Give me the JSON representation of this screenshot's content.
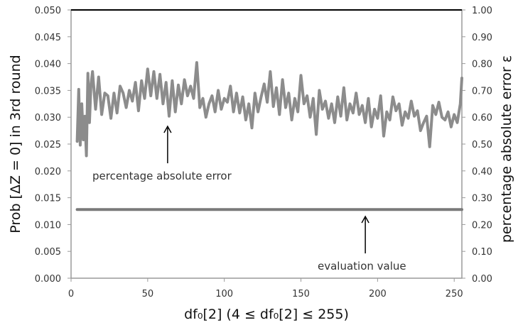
{
  "chart_data": {
    "type": "line",
    "title": "",
    "xlabel": "df₀[2]  (4 ≤ df₀[2] ≤ 255)",
    "ylabel_left": "Prob [ΔZ = 0] in 3rd round",
    "ylabel_right": "percentage absolute error ε",
    "xlim": [
      0,
      255
    ],
    "ylim_left": [
      0.0,
      0.05
    ],
    "ylim_right": [
      0.0,
      1.0
    ],
    "grid": false,
    "x_ticks": [
      "0",
      "50",
      "100",
      "150",
      "200",
      "250"
    ],
    "y_left_ticks": [
      "0.000",
      "0.005",
      "0.010",
      "0.015",
      "0.020",
      "0.025",
      "0.030",
      "0.035",
      "0.040",
      "0.045",
      "0.050"
    ],
    "y_right_ticks": [
      "0.00",
      "0.10",
      "0.20",
      "0.30",
      "0.40",
      "0.50",
      "0.60",
      "0.70",
      "0.80",
      "0.90",
      "1.00"
    ],
    "series": [
      {
        "name": "percentage absolute error",
        "axis": "left",
        "color": "#8c8c8c",
        "x": [
          4,
          5,
          6,
          7,
          8,
          9,
          10,
          11,
          12,
          13,
          14,
          16,
          18,
          20,
          22,
          24,
          26,
          28,
          30,
          32,
          34,
          36,
          38,
          40,
          42,
          44,
          46,
          48,
          50,
          52,
          54,
          56,
          58,
          60,
          62,
          64,
          66,
          68,
          70,
          72,
          74,
          76,
          78,
          80,
          82,
          84,
          86,
          88,
          90,
          92,
          94,
          96,
          98,
          100,
          102,
          104,
          106,
          108,
          110,
          112,
          114,
          116,
          118,
          120,
          122,
          124,
          126,
          128,
          130,
          132,
          134,
          136,
          138,
          140,
          142,
          144,
          146,
          148,
          150,
          152,
          154,
          156,
          158,
          160,
          162,
          164,
          166,
          168,
          170,
          172,
          174,
          176,
          178,
          180,
          182,
          184,
          186,
          188,
          190,
          192,
          194,
          196,
          198,
          200,
          202,
          204,
          206,
          208,
          210,
          212,
          214,
          216,
          218,
          220,
          222,
          224,
          226,
          228,
          230,
          232,
          234,
          236,
          238,
          240,
          242,
          244,
          246,
          248,
          250,
          252,
          254,
          255
        ],
        "values": [
          0.0255,
          0.0352,
          0.0248,
          0.0325,
          0.0258,
          0.0302,
          0.0228,
          0.0382,
          0.029,
          0.036,
          0.0385,
          0.0315,
          0.0375,
          0.0305,
          0.0345,
          0.034,
          0.0298,
          0.0345,
          0.0308,
          0.0358,
          0.0345,
          0.0318,
          0.035,
          0.033,
          0.0365,
          0.0312,
          0.0368,
          0.0335,
          0.039,
          0.034,
          0.0385,
          0.0335,
          0.038,
          0.0325,
          0.0365,
          0.0302,
          0.0368,
          0.031,
          0.036,
          0.0325,
          0.037,
          0.034,
          0.0358,
          0.0335,
          0.0402,
          0.0318,
          0.0335,
          0.03,
          0.0325,
          0.034,
          0.031,
          0.035,
          0.0315,
          0.0335,
          0.0328,
          0.0358,
          0.031,
          0.0345,
          0.0308,
          0.0338,
          0.0295,
          0.0325,
          0.028,
          0.0345,
          0.031,
          0.0338,
          0.0362,
          0.0328,
          0.0385,
          0.032,
          0.0355,
          0.0305,
          0.037,
          0.0318,
          0.0345,
          0.0295,
          0.0335,
          0.031,
          0.0378,
          0.0325,
          0.034,
          0.03,
          0.0335,
          0.0268,
          0.035,
          0.0315,
          0.033,
          0.0298,
          0.0325,
          0.029,
          0.0338,
          0.0302,
          0.0355,
          0.0295,
          0.0325,
          0.0308,
          0.0345,
          0.0305,
          0.0322,
          0.029,
          0.0335,
          0.0282,
          0.0315,
          0.0298,
          0.034,
          0.0265,
          0.031,
          0.0295,
          0.0338,
          0.0312,
          0.0325,
          0.0285,
          0.031,
          0.0298,
          0.033,
          0.0302,
          0.0312,
          0.0275,
          0.029,
          0.0302,
          0.0245,
          0.0322,
          0.0305,
          0.0328,
          0.03,
          0.0295,
          0.031,
          0.0282,
          0.0305,
          0.029,
          0.0325,
          0.0373
        ]
      },
      {
        "name": "evaluation value",
        "axis": "left",
        "color": "#7a7a7a",
        "x": [
          4,
          255
        ],
        "values": [
          0.0128,
          0.0128
        ]
      }
    ],
    "annotations": [
      {
        "text": "percentage absolute error",
        "arrow_to_x": 63,
        "arrow_to_y": 0.0283
      },
      {
        "text": "evaluation value",
        "arrow_to_x": 192,
        "arrow_to_y": 0.0115
      }
    ]
  }
}
